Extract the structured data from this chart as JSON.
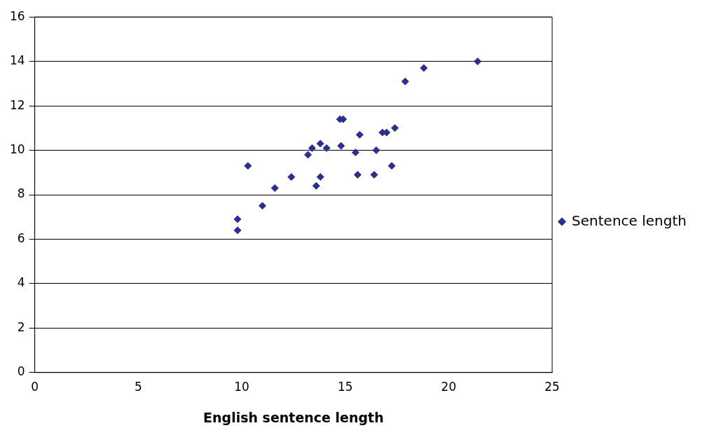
{
  "chart_data": {
    "type": "scatter",
    "xlabel": "English sentence length",
    "x": [
      9.8,
      9.8,
      10.3,
      11.0,
      11.6,
      12.4,
      13.2,
      13.4,
      13.6,
      13.8,
      13.8,
      14.1,
      14.75,
      14.9,
      14.8,
      15.5,
      15.6,
      15.7,
      16.5,
      16.4,
      16.8,
      17.0,
      17.25,
      17.4,
      17.9,
      18.8,
      21.4
    ],
    "series": [
      {
        "name": "Sentence length",
        "color": "#2b2f8f",
        "values": [
          6.4,
          6.9,
          9.3,
          7.5,
          8.3,
          8.8,
          9.8,
          10.1,
          8.4,
          10.3,
          8.8,
          10.1,
          11.4,
          11.4,
          10.2,
          9.9,
          8.9,
          10.7,
          10.0,
          8.9,
          10.8,
          10.8,
          9.3,
          11.0,
          13.1,
          13.7,
          14.0
        ]
      }
    ],
    "xlim": [
      0,
      25
    ],
    "xticks": [
      0,
      5,
      10,
      15,
      20,
      25
    ],
    "ylim": [
      0,
      16
    ],
    "yticks": [
      0,
      2,
      4,
      6,
      8,
      10,
      12,
      14,
      16
    ],
    "grid": "y",
    "legend": "right",
    "marker": "diamond"
  }
}
